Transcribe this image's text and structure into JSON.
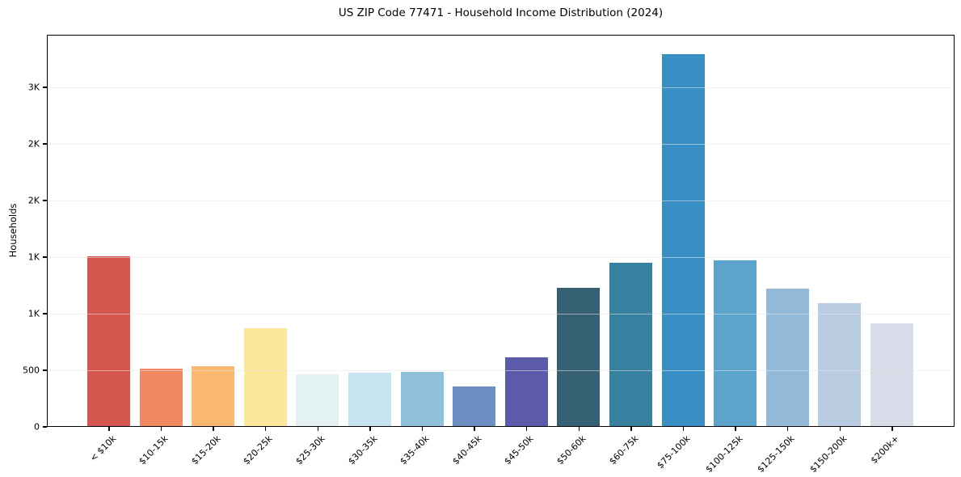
{
  "chart_data": {
    "type": "bar",
    "title": "US ZIP Code 77471 - Household Income Distribution (2024)",
    "ylabel": "Households",
    "xlabel": "",
    "categories": [
      "< $10k",
      "$10-15k",
      "$15-20k",
      "$20-25k",
      "$25-30k",
      "$30-35k",
      "$35-40k",
      "$40-45k",
      "$45-50k",
      "$50-60k",
      "$60-75k",
      "$75-100k",
      "$100-125k",
      "$125-150k",
      "$150-200k",
      "$200k+"
    ],
    "values": [
      1500,
      505,
      530,
      865,
      460,
      470,
      480,
      350,
      605,
      1220,
      1445,
      3285,
      1465,
      1215,
      1085,
      905
    ],
    "bar_colors": [
      "#d6574f",
      "#f1875f",
      "#fbb871",
      "#fde79c",
      "#e3f1f2",
      "#c6e3ef",
      "#8fc0dc",
      "#6c90c4",
      "#5c5bab",
      "#355f73",
      "#37809f",
      "#398fc4",
      "#5ca4cc",
      "#93bad9",
      "#b9cbe0",
      "#d8dbe8"
    ],
    "yticks": {
      "values": [
        0,
        500,
        1000,
        1500,
        2000,
        2500,
        3000
      ],
      "labels": [
        "0",
        "500",
        "1K",
        "1K",
        "2K",
        "2K",
        "3K"
      ]
    },
    "ylim": [
      0,
      3464
    ],
    "grid": "horizontal",
    "grid_color": "#e8e8e8",
    "axis_color": "#000000",
    "legend": "none"
  }
}
